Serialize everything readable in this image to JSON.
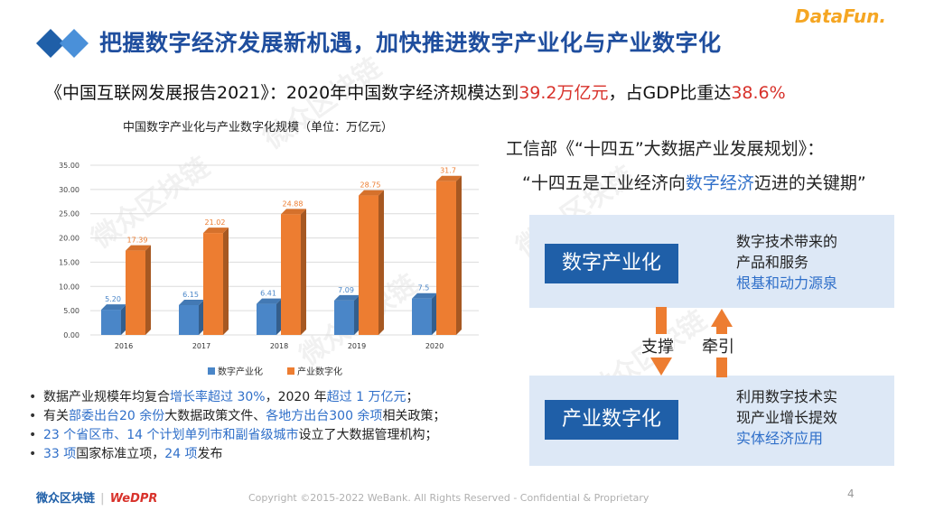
{
  "header": {
    "title": "把握数字经济发展新机遇，加快推进数字产业化与产业数字化",
    "logo_text": "DataFun."
  },
  "subtitle": {
    "prefix": "《中国互联网发展报告2021》：2020年中国数字经济规模达到",
    "value1": "39.2万亿元",
    "middle": "，占GDP比重达",
    "value2": "38.6%"
  },
  "chart_data": {
    "type": "bar",
    "title": "中国数字产业化与产业数字化规模（单位：万亿元）",
    "categories": [
      "2016",
      "2017",
      "2018",
      "2019",
      "2020"
    ],
    "series": [
      {
        "name": "数字产业化",
        "values": [
          5.2,
          6.15,
          6.41,
          7.09,
          7.5
        ],
        "labels": [
          "5.20",
          "6.15",
          "6.41",
          "7.09",
          "7.5"
        ],
        "color": "#4a86c8"
      },
      {
        "name": "产业数字化",
        "values": [
          17.39,
          21.02,
          24.88,
          28.75,
          31.7
        ],
        "labels": [
          "17.39",
          "21.02",
          "24.88",
          "28.75",
          "31.7"
        ],
        "color": "#ed7d31"
      }
    ],
    "ylim": [
      0,
      35
    ],
    "yticks": [
      "0.00",
      "5.00",
      "10.00",
      "15.00",
      "20.00",
      "25.00",
      "30.00",
      "35.00"
    ],
    "grid": true,
    "legend": "bottom"
  },
  "quote": {
    "line1": "工信部《“十四五”大数据产业发展规划》：",
    "line2_prefix": "“十四五是工业经济向",
    "line2_highlight": "数字经济",
    "line2_suffix": "迈进的关键期”"
  },
  "diagram": {
    "top": {
      "label": "数字产业化",
      "desc_line1": "数字技术带来的",
      "desc_line2": "产品和服务",
      "desc_line3": "根基和动力源泉"
    },
    "bottom": {
      "label": "产业数字化",
      "desc_line1": "利用数字技术实",
      "desc_line2": "现产业增长提效",
      "desc_line3": "实体经济应用"
    },
    "support_label": "支撑",
    "pull_label": "牵引",
    "arrow_color": "#ed7d31"
  },
  "bullets": [
    {
      "parts": [
        {
          "t": "数据产业规模年均复合",
          "c": ""
        },
        {
          "t": "增长率超过 30%",
          "c": "blue"
        },
        {
          "t": "，2020 年",
          "c": ""
        },
        {
          "t": "超过 1 万亿元",
          "c": "blue"
        },
        {
          "t": "；",
          "c": ""
        }
      ]
    },
    {
      "parts": [
        {
          "t": "有关",
          "c": ""
        },
        {
          "t": "部委出台20 余份",
          "c": "blue"
        },
        {
          "t": "大数据政策文件、",
          "c": ""
        },
        {
          "t": "各地方出台300 余项",
          "c": "blue"
        },
        {
          "t": "相关政策；",
          "c": ""
        }
      ]
    },
    {
      "parts": [
        {
          "t": "23 个省区市、14 个计划单列市和副省级城市",
          "c": "blue"
        },
        {
          "t": "设立了大数据管理机构；",
          "c": ""
        }
      ]
    },
    {
      "parts": [
        {
          "t": "33 项",
          "c": "blue"
        },
        {
          "t": "国家标准立项，",
          "c": ""
        },
        {
          "t": "24 项",
          "c": "blue"
        },
        {
          "t": "发布",
          "c": ""
        }
      ]
    }
  ],
  "footer": {
    "brand_cn": "微众区块链",
    "brand_en": "WeDPR",
    "copyright": "Copyright ©2015-2022 WeBank. All Rights Reserved - Confidential & Proprietary",
    "page_number": "4"
  }
}
